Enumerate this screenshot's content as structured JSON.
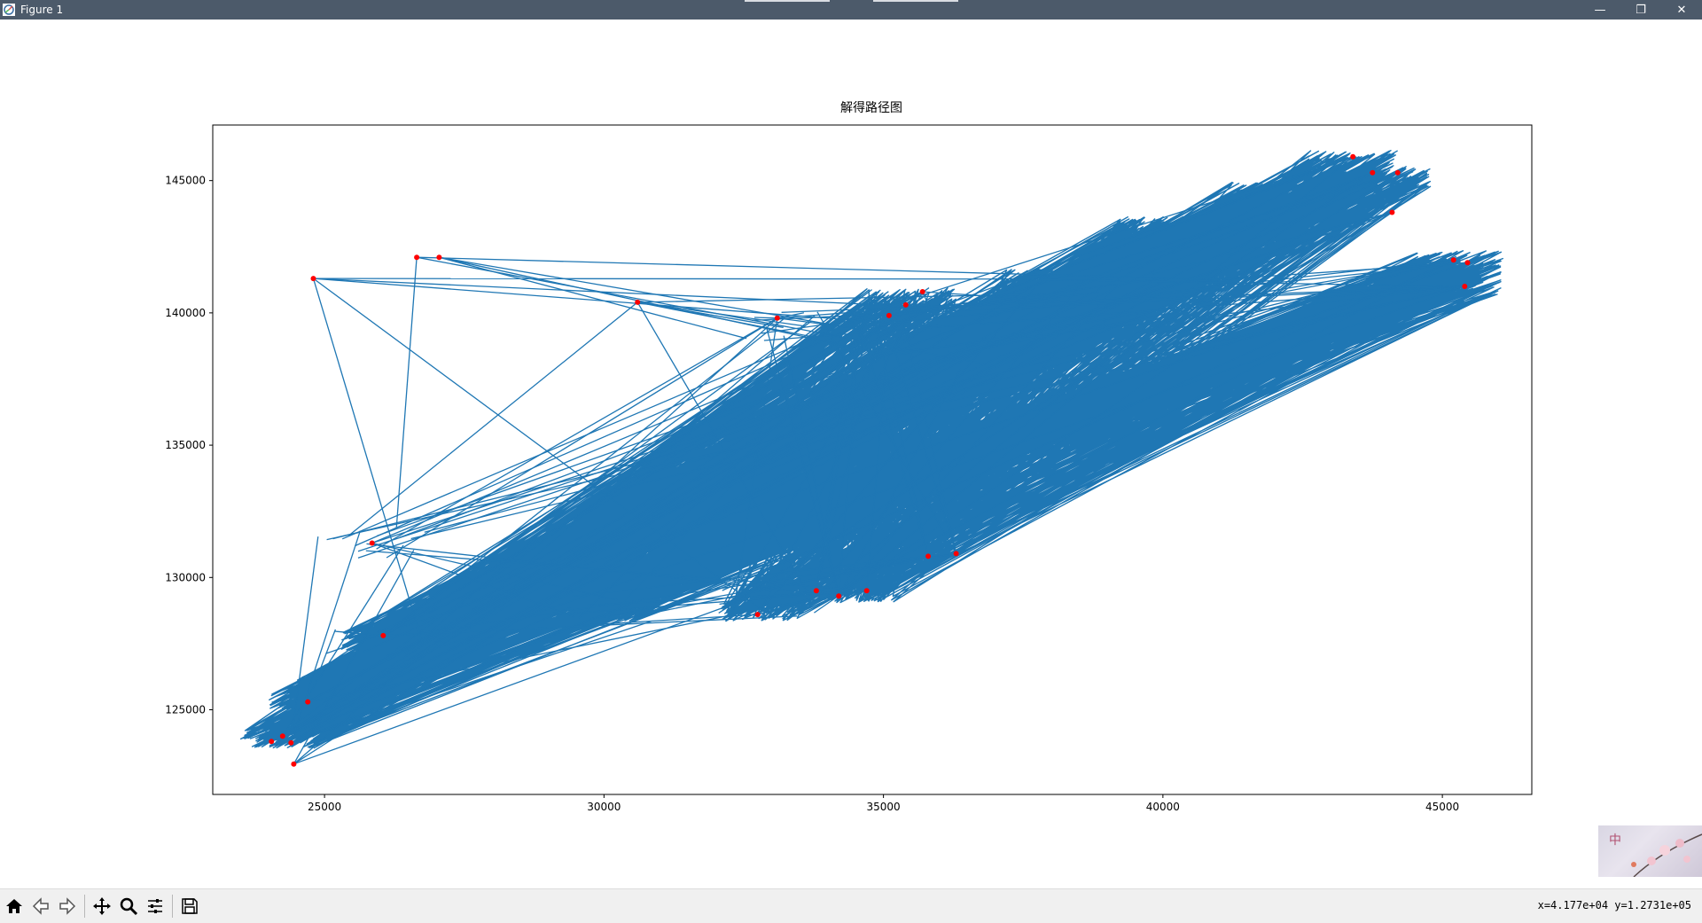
{
  "window": {
    "title": "Figure 1",
    "controls": {
      "minimize": "—",
      "restore": "❐",
      "close": "✕"
    }
  },
  "status": {
    "coords": "x=4.177e+04 y=1.2731e+05"
  },
  "toolbar": {
    "buttons": [
      {
        "name": "home-icon"
      },
      {
        "name": "back-arrow-icon"
      },
      {
        "name": "forward-arrow-icon"
      },
      {
        "name": "pan-icon"
      },
      {
        "name": "zoom-icon"
      },
      {
        "name": "configure-subplots-icon"
      },
      {
        "name": "save-icon"
      }
    ]
  },
  "ime": {
    "char": "中"
  },
  "colors": {
    "line": "#1f77b4",
    "points": "#e41a1c",
    "titlebar": "#4c5a6a",
    "toolbar": "#f0f0f0"
  },
  "chart_data": {
    "type": "line",
    "title": "解得路径图",
    "xlabel": "",
    "ylabel": "",
    "xlim": [
      23000,
      46600
    ],
    "ylim": [
      121800,
      147100
    ],
    "xticks": [
      25000,
      30000,
      35000,
      40000,
      45000
    ],
    "yticks": [
      125000,
      130000,
      135000,
      140000,
      145000
    ],
    "grid": false,
    "marker_color": "red",
    "line_color": "#1f77b4",
    "points": [
      [
        24050,
        123800
      ],
      [
        24250,
        124000
      ],
      [
        24400,
        123750
      ],
      [
        24450,
        122950
      ],
      [
        24700,
        125300
      ],
      [
        24800,
        141300
      ],
      [
        25850,
        131300
      ],
      [
        26050,
        127800
      ],
      [
        26650,
        142100
      ],
      [
        27050,
        142100
      ],
      [
        30600,
        140400
      ],
      [
        33100,
        139800
      ],
      [
        32750,
        128600
      ],
      [
        34200,
        129300
      ],
      [
        34700,
        129500
      ],
      [
        35400,
        140300
      ],
      [
        35700,
        140800
      ],
      [
        35800,
        130800
      ],
      [
        36300,
        130900
      ],
      [
        43400,
        145900
      ],
      [
        43750,
        145300
      ],
      [
        44200,
        145300
      ],
      [
        44100,
        143800
      ],
      [
        45200,
        142000
      ],
      [
        45450,
        141900
      ],
      [
        45400,
        141000
      ],
      [
        33800,
        129500
      ],
      [
        35100,
        139900
      ]
    ],
    "note": ""
  }
}
